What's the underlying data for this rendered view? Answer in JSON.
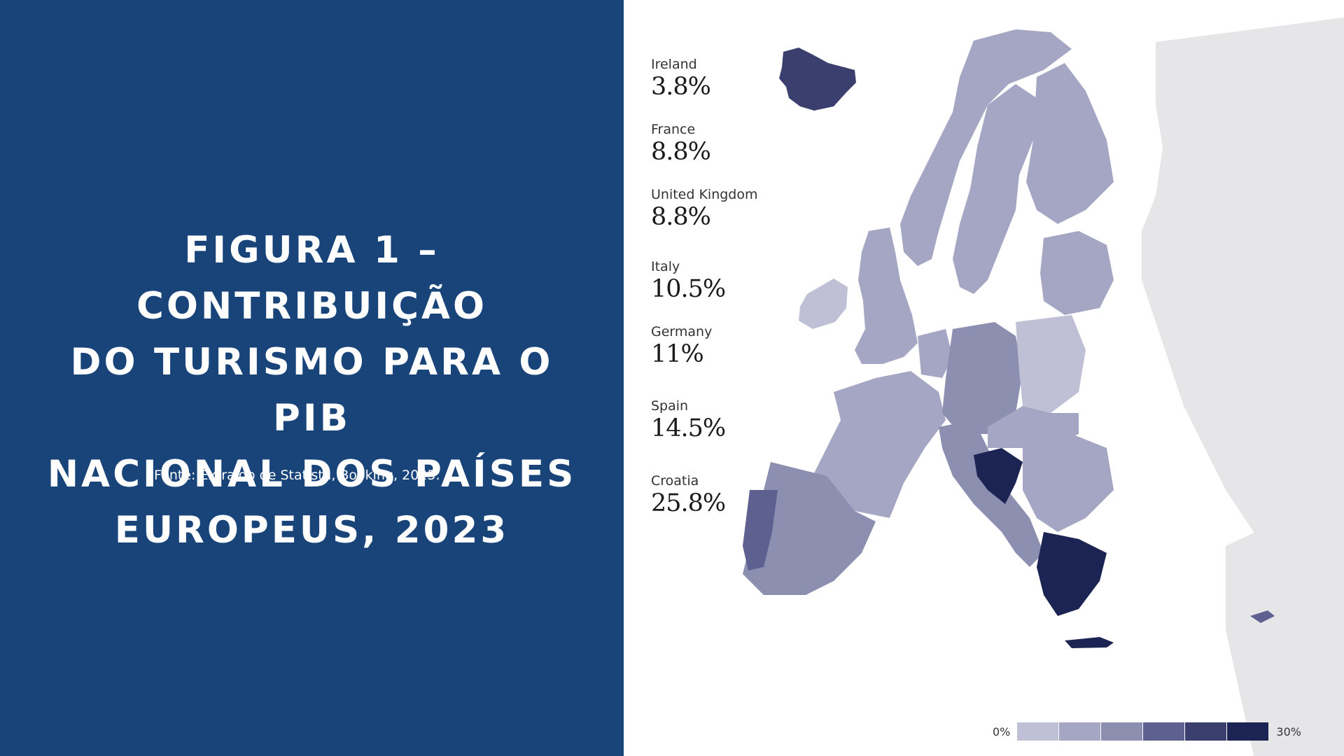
{
  "slide": {
    "title": "FIGURA 1 – CONTRIBUIÇÃO DO TURISMO PARA O PIB NACIONAL DOS PAÍSES EUROPEUS, 2023",
    "title_lines": [
      "FIGURA 1 – CONTRIBUIÇÃO",
      "DO TURISMO PARA O PIB",
      "NACIONAL DOS PAÍSES",
      "EUROPEUS, 2023"
    ],
    "source": "Fonte: Extraído de Statista, Booking, 2025.",
    "panel_color": "#18447a"
  },
  "map": {
    "highlighted_countries": [
      {
        "name": "Ireland",
        "value": "3.8%"
      },
      {
        "name": "France",
        "value": "8.8%"
      },
      {
        "name": "United Kingdom",
        "value": "8.8%"
      },
      {
        "name": "Italy",
        "value": "10.5%"
      },
      {
        "name": "Germany",
        "value": "11%"
      },
      {
        "name": "Spain",
        "value": "14.5%"
      },
      {
        "name": "Croatia",
        "value": "25.8%"
      }
    ],
    "legend": {
      "min_label": "0%",
      "max_label": "30%",
      "colors": [
        "#bfc0d6",
        "#a4a6c4",
        "#8c8fb0",
        "#5e6190",
        "#3b3f6e",
        "#1c2453"
      ]
    },
    "colors": {
      "ocean": "#ffffff",
      "non_data_land": "#e6e6e8",
      "border": "#ffffff"
    }
  }
}
